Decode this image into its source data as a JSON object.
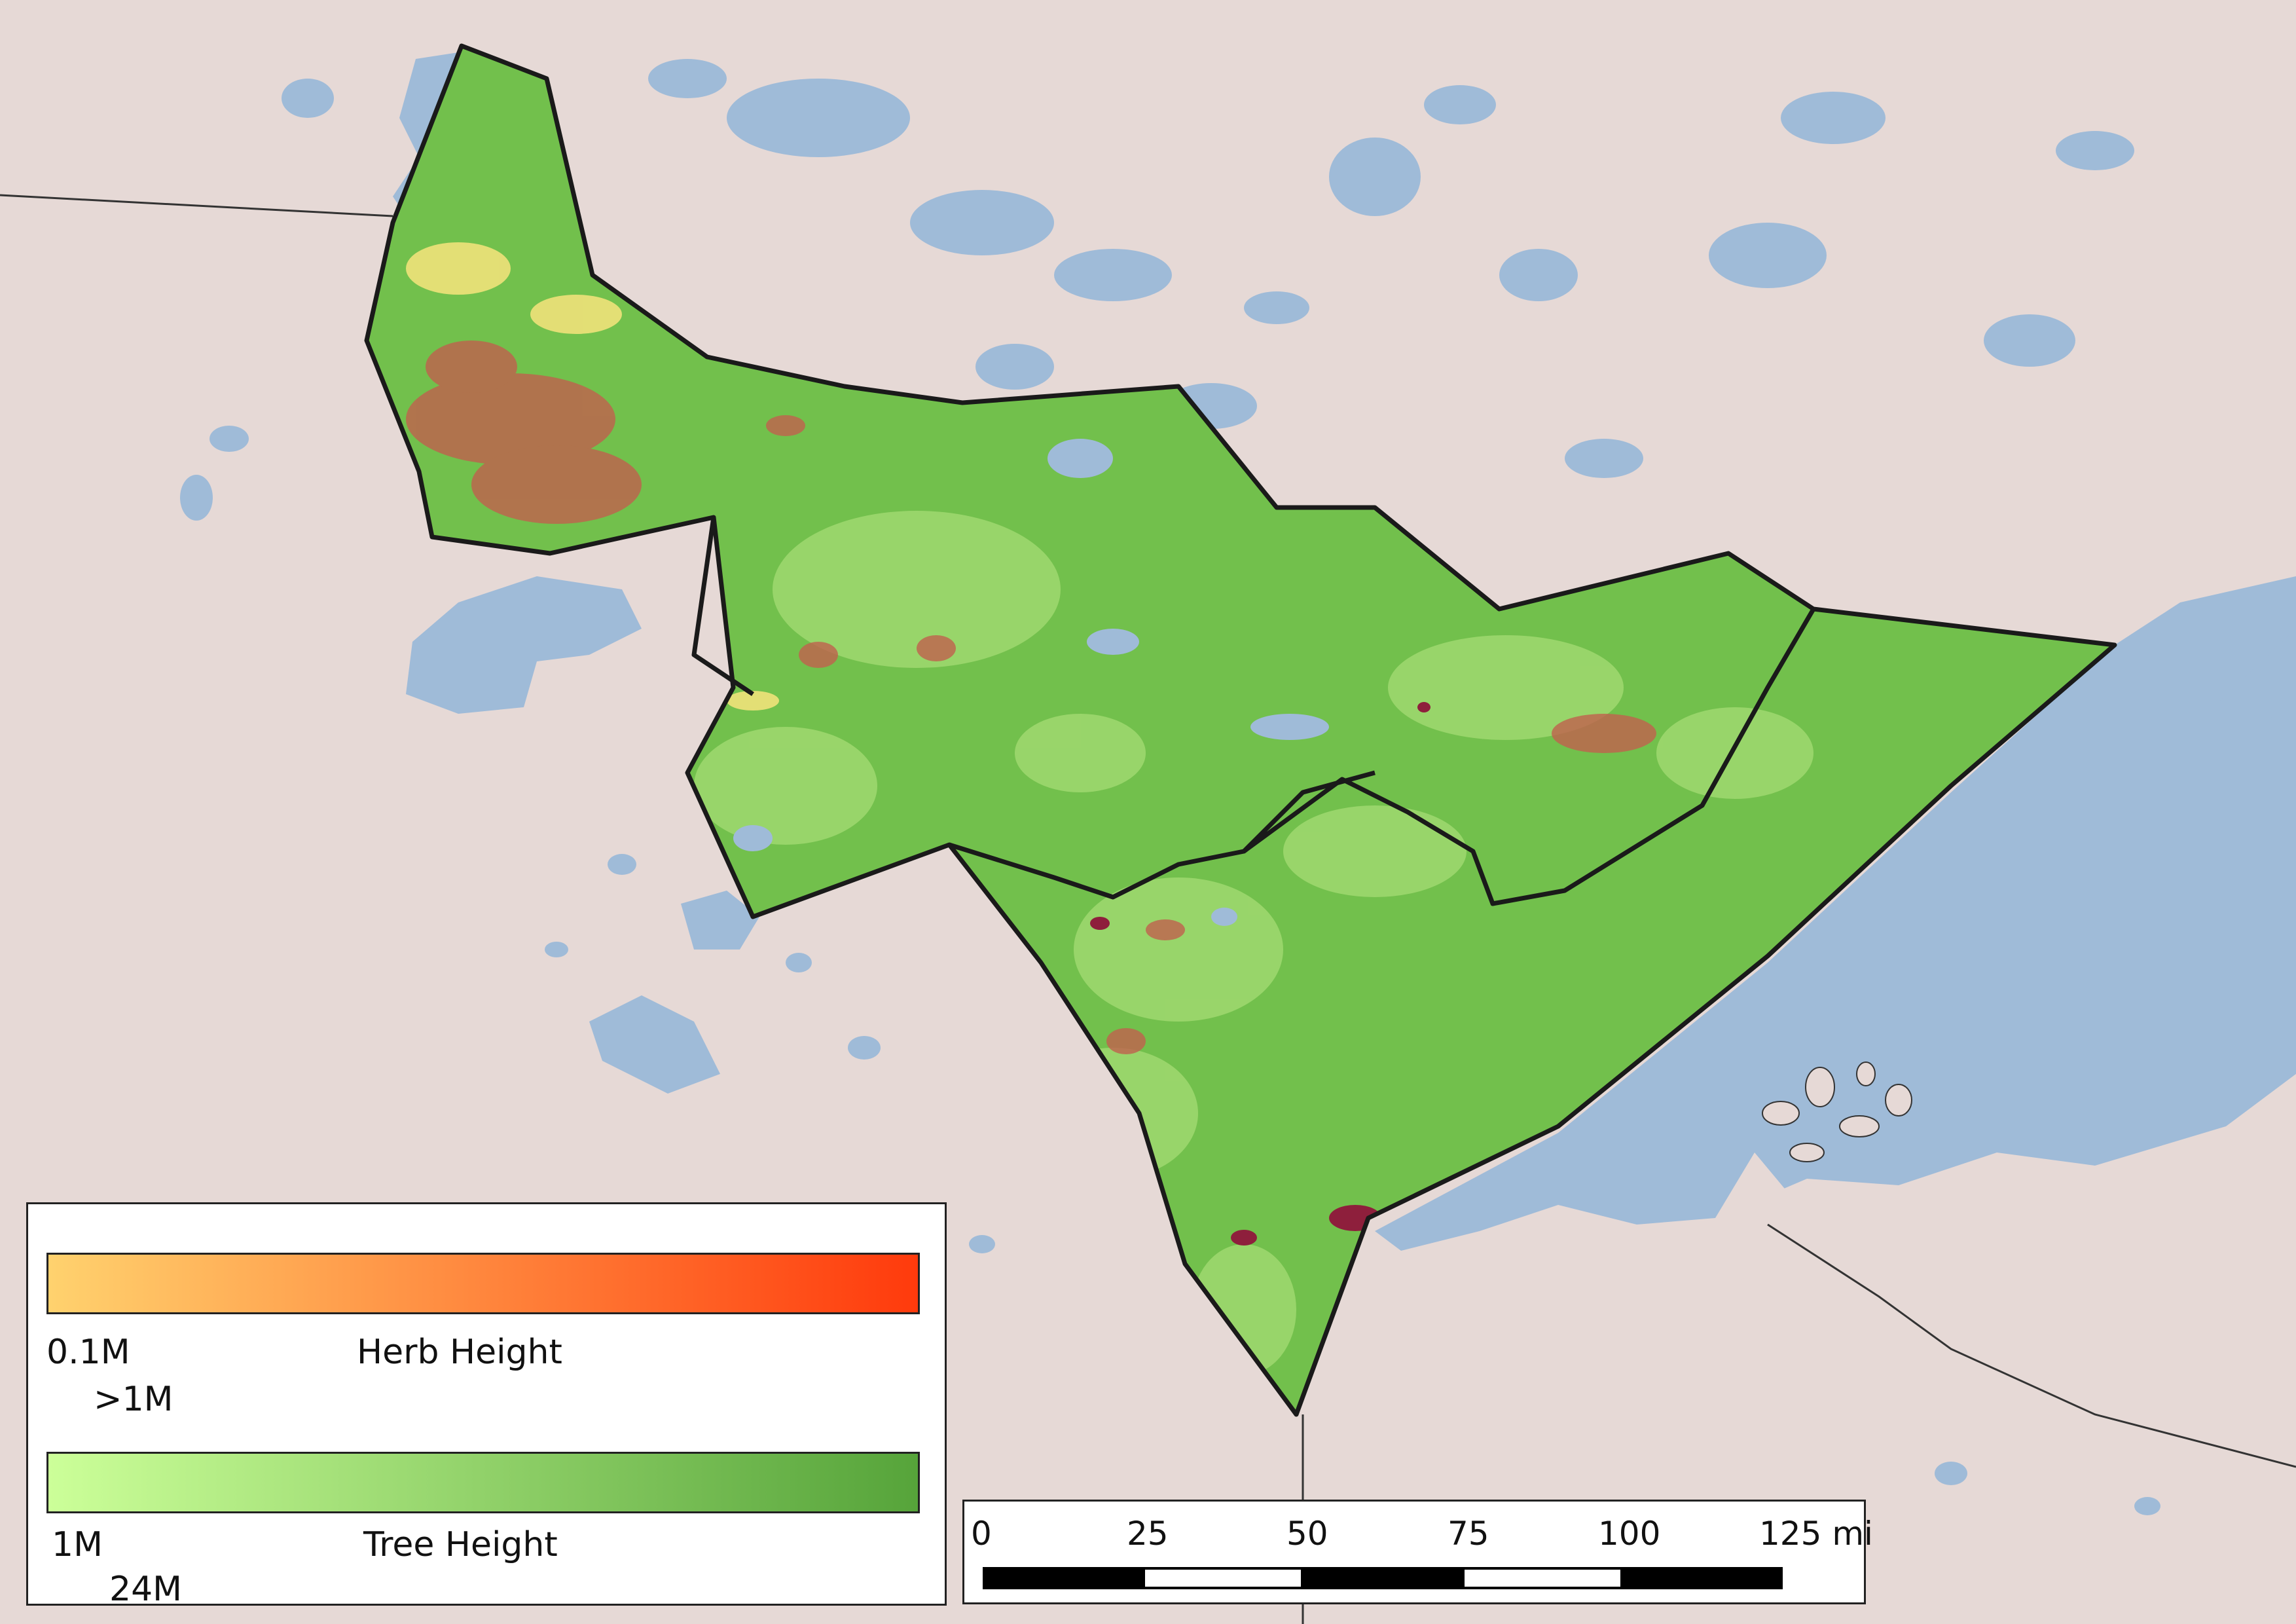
{
  "colors": {
    "land": "#e6d9d6",
    "water": "#9fbbd8",
    "forest": "#72c04c",
    "forest_light": "#a6dc74",
    "herb": "#c0604e",
    "herb_light": "#f0e27a",
    "urban": "#8e1f3c",
    "boundary": "#1a1a1a",
    "herb_ramp_start": "#ffd26e",
    "herb_ramp_end": "#ff3a0c",
    "tree_ramp_start": "#ccff99",
    "tree_ramp_end": "#56a43a"
  },
  "legend": {
    "herb": {
      "min_label": "0.1M",
      "title": "Herb  Height",
      "max_label": ">1M"
    },
    "tree": {
      "min_label": "1M",
      "title": "Tree  Height",
      "max_label": "24M"
    }
  },
  "scalebar": {
    "ticks": [
      "0",
      "25",
      "50",
      "75",
      "100",
      "125 mi"
    ]
  }
}
